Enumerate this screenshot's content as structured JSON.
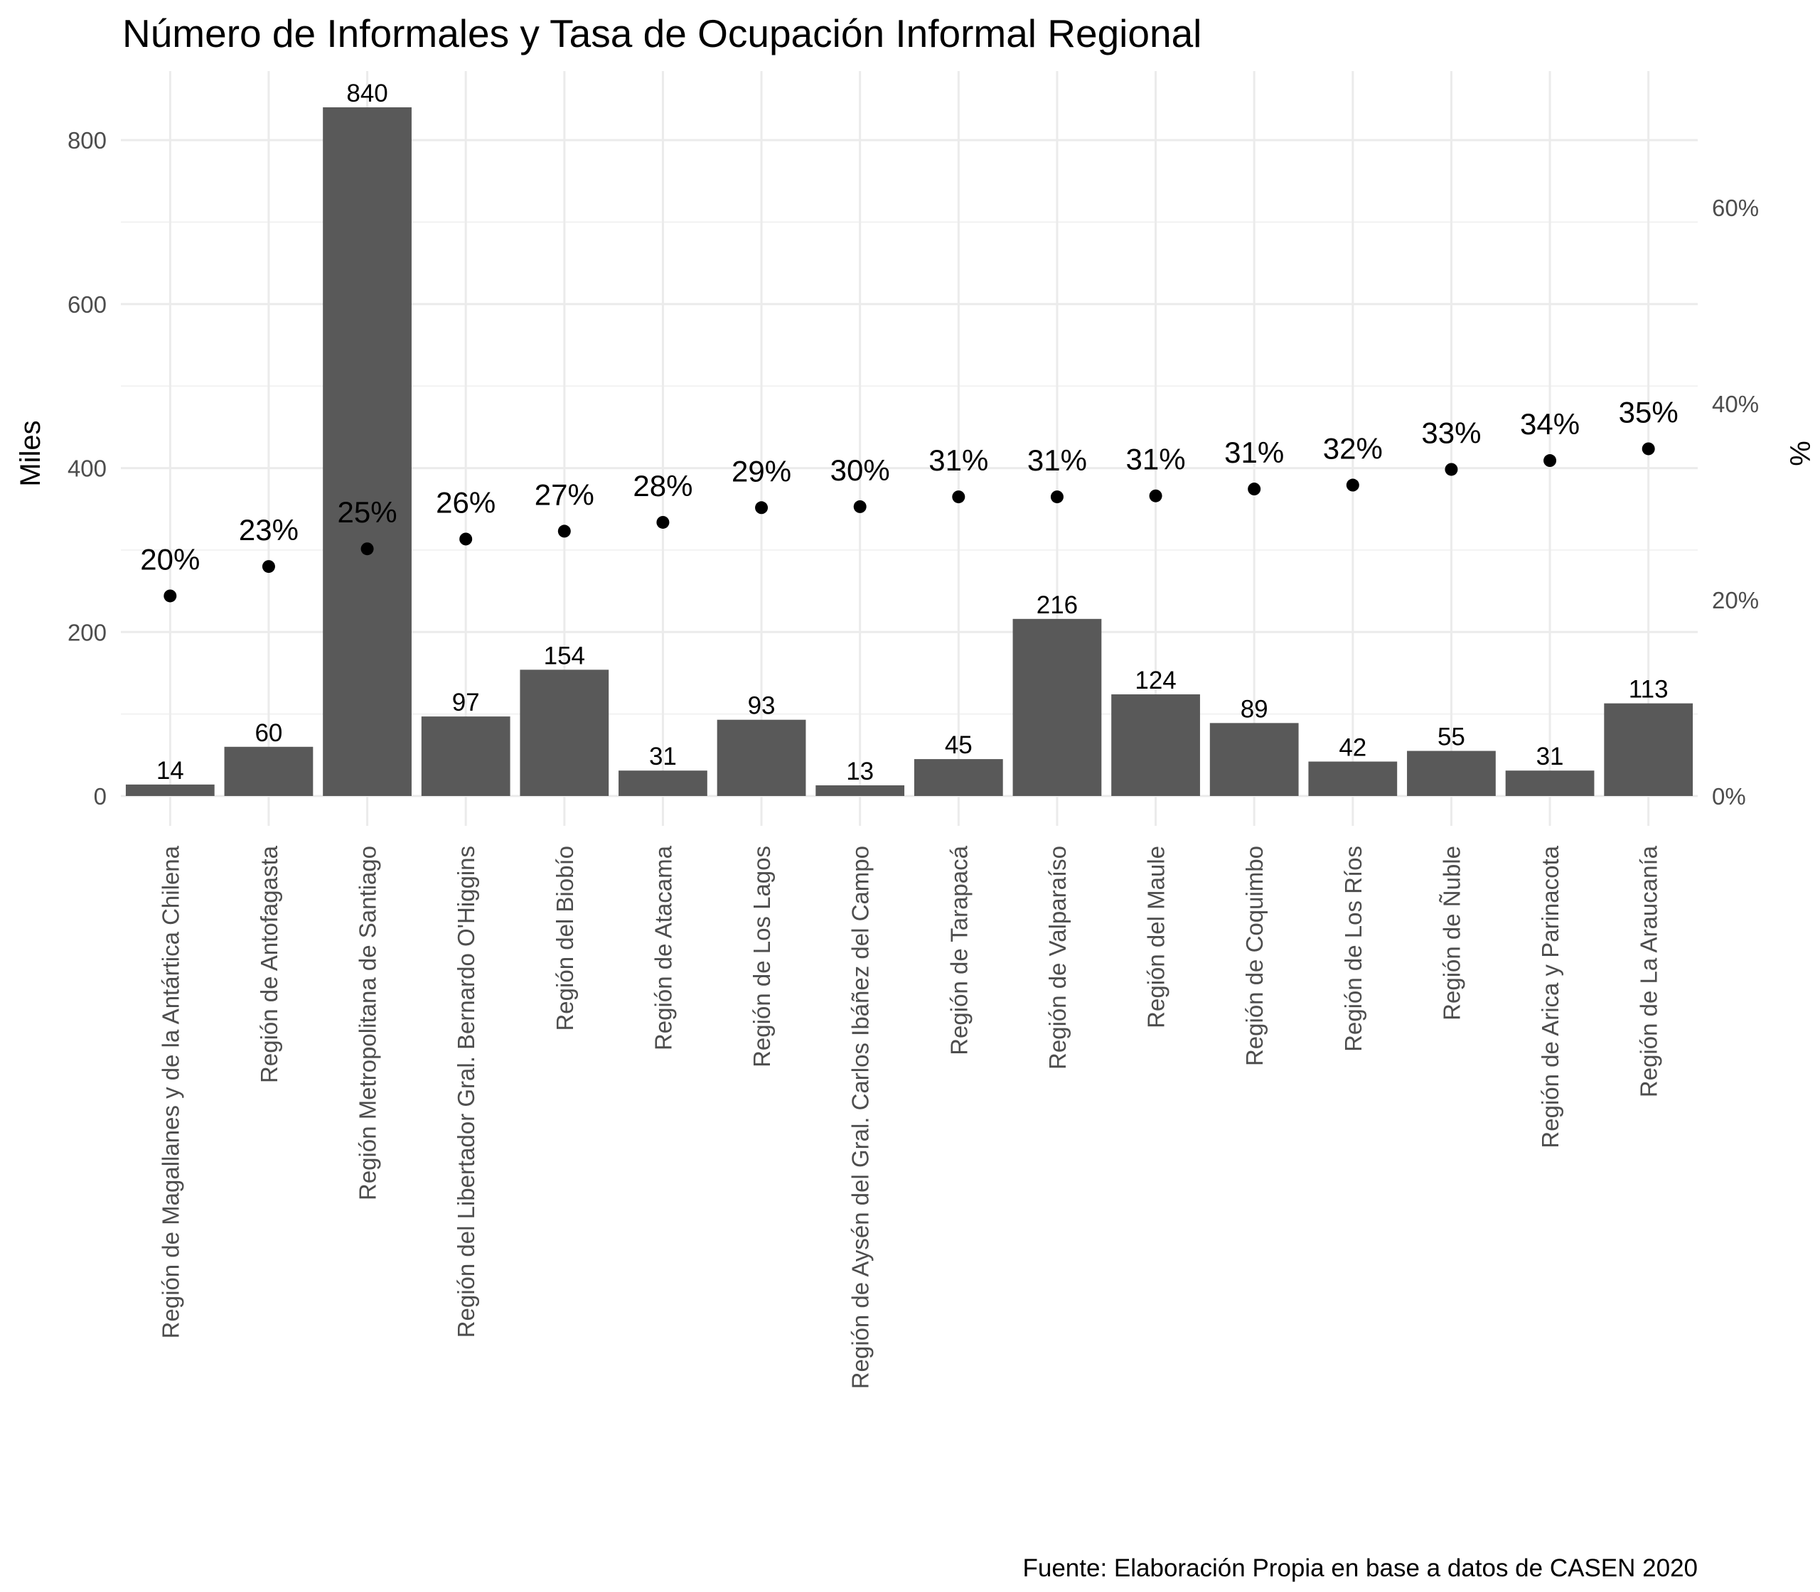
{
  "chart_data": {
    "type": "bar",
    "title": "Número de Informales y Tasa de Ocupación Informal Regional",
    "caption": "Fuente: Elaboración Propia en base a datos de CASEN 2020",
    "ylabel": "Miles",
    "y2label": "%",
    "ylim": [
      0,
      880
    ],
    "y2lim": [
      0,
      0.7
    ],
    "yticks": [
      0,
      200,
      400,
      600,
      800
    ],
    "y2ticks": [
      0,
      0.2,
      0.4,
      0.6
    ],
    "y2tick_labels": [
      "0%",
      "20%",
      "40%",
      "60%"
    ],
    "grid": true,
    "bar_color": "#595959",
    "point_color": "#000000",
    "categories": [
      "Región de Magallanes y de la Antártica Chilena",
      "Región de Antofagasta",
      "Región Metropolitana de Santiago",
      "Región del Libertador Gral. Bernardo O'Higgins",
      "Región del Biobío",
      "Región de Atacama",
      "Región de Los Lagos",
      "Región de Aysén del Gral. Carlos Ibáñez del Campo",
      "Región de Tarapacá",
      "Región de Valparaíso",
      "Región del Maule",
      "Región de Coquimbo",
      "Región de Los Ríos",
      "Región de Ñuble",
      "Región de Arica y Parinacota",
      "Región de La Araucanía"
    ],
    "series": [
      {
        "type": "bar",
        "axis": "left",
        "values": [
          14,
          60,
          840,
          97,
          154,
          31,
          93,
          13,
          45,
          216,
          124,
          89,
          42,
          55,
          31,
          113
        ],
        "labels": [
          "14",
          "60",
          "840",
          "97",
          "154",
          "31",
          "93",
          "13",
          "45",
          "216",
          "124",
          "89",
          "42",
          "55",
          "31",
          "113"
        ]
      },
      {
        "type": "scatter",
        "axis": "right",
        "values": [
          0.204,
          0.234,
          0.252,
          0.262,
          0.27,
          0.279,
          0.294,
          0.295,
          0.305,
          0.305,
          0.306,
          0.313,
          0.317,
          0.333,
          0.342,
          0.354
        ],
        "labels": [
          "20%",
          "23%",
          "25%",
          "26%",
          "27%",
          "28%",
          "29%",
          "30%",
          "31%",
          "31%",
          "31%",
          "31%",
          "32%",
          "33%",
          "34%",
          "35%"
        ]
      }
    ]
  }
}
